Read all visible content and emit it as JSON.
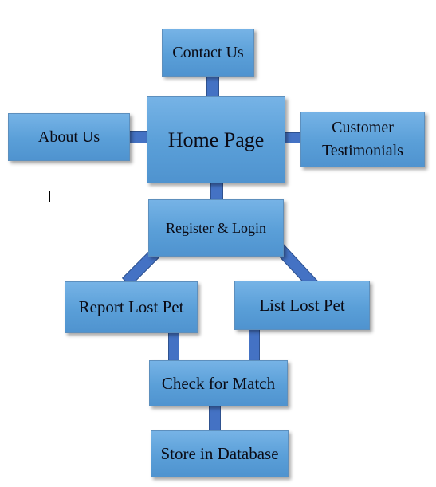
{
  "diagram": {
    "nodes": {
      "contact": "Contact Us",
      "about": "About Us",
      "home": "Home Page",
      "customer_testimonials": "Customer Testimonials",
      "register": "Register & Login",
      "report": "Report Lost Pet",
      "list": "List Lost Pet",
      "check": "Check for Match",
      "store": "Store in Database"
    },
    "edges": [
      [
        "contact",
        "home"
      ],
      [
        "about",
        "home"
      ],
      [
        "home",
        "customer_testimonials"
      ],
      [
        "home",
        "register"
      ],
      [
        "register",
        "report"
      ],
      [
        "register",
        "list"
      ],
      [
        "report",
        "check"
      ],
      [
        "list",
        "check"
      ],
      [
        "check",
        "store"
      ]
    ]
  },
  "colors": {
    "node_fill": "#5a9fd8",
    "connector_fill": "#4472c4"
  }
}
